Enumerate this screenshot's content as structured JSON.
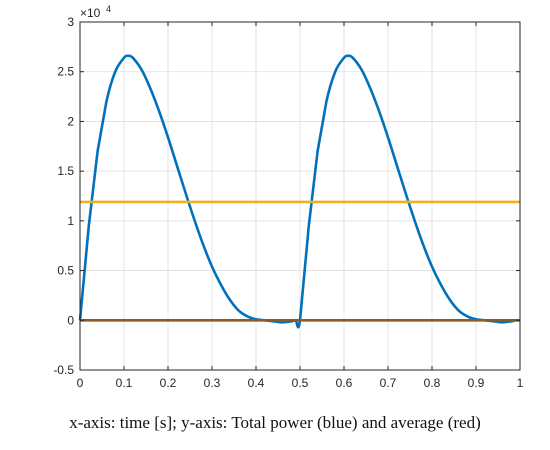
{
  "caption": "x-axis: time [s]; y-axis: Total power (blue) and average (red)",
  "chart_data": {
    "type": "line",
    "title": "",
    "xlabel": "",
    "ylabel": "",
    "xlim": [
      0,
      1
    ],
    "ylim": [
      -0.5,
      3
    ],
    "y_exponent_base": "×10",
    "y_exponent_power": "4",
    "grid": true,
    "x_ticks": [
      "0",
      "0.1",
      "0.2",
      "0.3",
      "0.4",
      "0.5",
      "0.6",
      "0.7",
      "0.8",
      "0.9",
      "1"
    ],
    "y_ticks": [
      "-0.5",
      "0",
      "0.5",
      "1",
      "1.5",
      "2",
      "2.5",
      "3"
    ],
    "series": [
      {
        "color": "#0072bd",
        "x": [
          0,
          0.02,
          0.04,
          0.06,
          0.08,
          0.1,
          0.11,
          0.12,
          0.14,
          0.16,
          0.18,
          0.2,
          0.22,
          0.24,
          0.26,
          0.28,
          0.3,
          0.32,
          0.34,
          0.36,
          0.38,
          0.4,
          0.42,
          0.44,
          0.46,
          0.48,
          0.49,
          0.5,
          0.52,
          0.54,
          0.56,
          0.58,
          0.6,
          0.61,
          0.62,
          0.64,
          0.66,
          0.68,
          0.7,
          0.72,
          0.74,
          0.76,
          0.78,
          0.8,
          0.82,
          0.84,
          0.86,
          0.88,
          0.9,
          0.92,
          0.94,
          0.96,
          0.98,
          0.99,
          1
        ],
        "y": [
          0,
          0.95,
          1.7,
          2.2,
          2.5,
          2.64,
          2.66,
          2.64,
          2.52,
          2.33,
          2.1,
          1.84,
          1.56,
          1.28,
          1.01,
          0.76,
          0.54,
          0.36,
          0.21,
          0.1,
          0.04,
          0.01,
          0,
          -0.01,
          -0.02,
          -0.01,
          0,
          0,
          0.95,
          1.7,
          2.2,
          2.5,
          2.64,
          2.66,
          2.64,
          2.52,
          2.33,
          2.1,
          1.84,
          1.56,
          1.28,
          1.01,
          0.76,
          0.54,
          0.36,
          0.21,
          0.1,
          0.04,
          0.01,
          0,
          -0.01,
          -0.02,
          -0.01,
          0,
          0
        ]
      },
      {
        "color": "#edb120",
        "x": [
          0,
          1
        ],
        "y": [
          1.19,
          1.19
        ]
      },
      {
        "color": "#8b5a2b",
        "x": [
          0,
          1
        ],
        "y": [
          0,
          0
        ]
      }
    ]
  }
}
